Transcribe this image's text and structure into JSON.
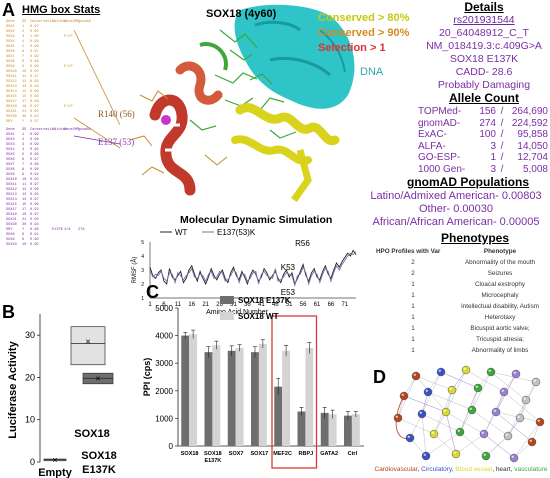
{
  "panel_a": {
    "letter": "A",
    "hmg_title": "HMG box Stats",
    "table_top_header": [
      "Gene",
      "SS",
      "Conservation",
      "ClinVar",
      "Gene2MP",
      "gnomAD"
    ],
    "table_top_rows": [
      [
        "SOX1",
        "1",
        "0.97",
        "",
        "",
        ""
      ],
      [
        "SOX2",
        "2",
        "0.95",
        "",
        "",
        ""
      ],
      [
        "SOX3",
        "3",
        "1.00",
        "",
        "P/LP",
        ""
      ],
      [
        "SOX4",
        "4",
        "0.98",
        "",
        "",
        ""
      ],
      [
        "SOX5",
        "5",
        "0.96",
        "",
        "",
        ""
      ],
      [
        "SOX6",
        "6",
        "0.97",
        "",
        "",
        ""
      ],
      [
        "SOX7",
        "7",
        "0.99",
        "",
        "",
        ""
      ],
      [
        "SOX8",
        "8",
        "0.96",
        "",
        "",
        ""
      ],
      [
        "SOX9",
        "9",
        "0.98",
        "",
        "P/LP",
        ""
      ],
      [
        "SOX10",
        "10",
        "0.95",
        "",
        "",
        ""
      ],
      [
        "SOX11",
        "11",
        "0.97",
        "",
        "",
        ""
      ],
      [
        "SOX12",
        "12",
        "0.96",
        "",
        "",
        ""
      ],
      [
        "SOX13",
        "13",
        "0.94",
        "",
        "",
        ""
      ],
      [
        "SOX14",
        "14",
        "0.99",
        "",
        "",
        ""
      ],
      [
        "SOX15",
        "15",
        "0.96",
        "",
        "",
        ""
      ],
      [
        "SOX17",
        "17",
        "0.98",
        "",
        "",
        ""
      ],
      [
        "SOX18",
        "18",
        "0.97",
        "",
        "P/LP",
        ""
      ],
      [
        "SOX21",
        "21",
        "0.95",
        "",
        "",
        ""
      ],
      [
        "SOX30",
        "30",
        "0.93",
        "",
        "",
        ""
      ],
      [
        "SRY",
        "Y",
        "0.97",
        "",
        "",
        ""
      ]
    ],
    "table_bottom_header": [
      "Gene",
      "SS",
      "Conservation",
      "ClinVar",
      "Gene2MP",
      "gnomAD"
    ],
    "table_bottom_rows": [
      [
        "SOX1",
        "1",
        "0.99",
        "",
        "",
        ""
      ],
      [
        "SOX2",
        "2",
        "0.98",
        "",
        "",
        ""
      ],
      [
        "SOX3",
        "3",
        "0.99",
        "",
        "",
        ""
      ],
      [
        "SOX4",
        "4",
        "0.95",
        "",
        "",
        ""
      ],
      [
        "SOX5",
        "5",
        "0.98",
        "",
        "",
        ""
      ],
      [
        "SOX6",
        "6",
        "0.97",
        "",
        "",
        ""
      ],
      [
        "SOX7",
        "7",
        "0.98",
        "",
        "",
        ""
      ],
      [
        "SOX8",
        "8",
        "0.96",
        "",
        "",
        ""
      ],
      [
        "SOX9",
        "9",
        "0.94",
        "",
        "",
        ""
      ],
      [
        "SOX10",
        "10",
        "0.95",
        "",
        "",
        ""
      ],
      [
        "SOX11",
        "11",
        "0.97",
        "",
        "",
        ""
      ],
      [
        "SOX12",
        "12",
        "0.96",
        "",
        "",
        ""
      ],
      [
        "SOX13",
        "13",
        "0.95",
        "",
        "",
        ""
      ],
      [
        "SOX14",
        "14",
        "0.97",
        "",
        "",
        ""
      ],
      [
        "SOX15",
        "15",
        "0.96",
        "",
        "",
        ""
      ],
      [
        "SOX17",
        "17",
        "0.93",
        "",
        "",
        ""
      ],
      [
        "SOX18",
        "18",
        "0.97",
        "",
        "",
        ""
      ],
      [
        "SOX21",
        "21",
        "0.95",
        "",
        "",
        ""
      ],
      [
        "SOX30",
        "30",
        "0.94",
        "",
        "",
        ""
      ],
      [
        "SRY",
        "Y",
        "0.98",
        "E137K",
        "1/6",
        "278"
      ],
      [
        "SOX8",
        "8",
        "0.91",
        "",
        "",
        ""
      ],
      [
        "SOX9",
        "9",
        "0.90",
        "",
        "",
        ""
      ],
      [
        "SOX10",
        "10",
        "0.95",
        "",
        "",
        ""
      ]
    ],
    "label_r140": "R140 (56)",
    "label_e137": "E137 (53)",
    "structure_title": "SOX18 (4y60)",
    "dna_label": "DNA",
    "legend": {
      "conserved80": "Conserved > 80%",
      "conserved90": "Conserved > 90%",
      "selection": "Selection > 1"
    },
    "colors": {
      "conserved80": "#c8c810",
      "conserved90": "#d48a1c",
      "selection": "#e03030",
      "dna": "#2ec4c8",
      "purple": "#7b2ea6"
    },
    "details": {
      "title": "Details",
      "rsid": "rs201931544",
      "hgvs_g": "20_64048912_C_T",
      "hgvs_c": "NM_018419.3:c.409G>A",
      "protein": "SOX18 E137K",
      "cadd": "CADD- 28.6",
      "prediction": "Probably Damaging"
    },
    "allele_count": {
      "title": "Allele Count",
      "rows": [
        {
          "source": "TOPMed-",
          "count": "156",
          "total": "264,690"
        },
        {
          "source": "gnomAD-",
          "count": "274",
          "total": "224,592"
        },
        {
          "source": "ExAC-",
          "count": "100",
          "total": "95,858"
        },
        {
          "source": "ALFA-",
          "count": "3",
          "total": "14,050"
        },
        {
          "source": "GO-ESP-",
          "count": "1",
          "total": "12,704"
        },
        {
          "source": "1000 Gen-",
          "count": "3",
          "total": "5,008"
        }
      ]
    },
    "gnomad_populations": {
      "title": "gnomAD Populations",
      "rows": [
        "Latino/Admixed American- 0.00803",
        "Other- 0.00030",
        "African/African American- 0.00005"
      ]
    },
    "phenotypes": {
      "title": "Phenotypes",
      "header_left": "HPO Profiles with Var",
      "header_right": "Phenotype",
      "rows": [
        {
          "n": "2",
          "name": "Abnormality of the mouth"
        },
        {
          "n": "2",
          "name": "Seizures"
        },
        {
          "n": "1",
          "name": "Cloacal exstrophy"
        },
        {
          "n": "1",
          "name": "Microcephaly"
        },
        {
          "n": "1",
          "name": "Intellectual disability, Autism"
        },
        {
          "n": "1",
          "name": "Heterotaxy"
        },
        {
          "n": "1",
          "name": "Bicuspid aortic valve;"
        },
        {
          "n": "1",
          "name": "Tricuspid atresia;"
        },
        {
          "n": "1",
          "name": "Abnormality of limbs"
        }
      ]
    },
    "md": {
      "title": "Molecular Dynamic Simulation",
      "legend_wt": "WT",
      "legend_mut": "E137(53)K",
      "ylabel": "RMSF (Å)",
      "xlabel": "Amino Acid Number",
      "yticks": [
        "5",
        "4",
        "3",
        "2",
        "1"
      ],
      "xticks": [
        "1",
        "6",
        "11",
        "16",
        "21",
        "26",
        "31",
        "36",
        "41",
        "46",
        "51",
        "56",
        "61",
        "66",
        "71"
      ],
      "labels": [
        "R56",
        "K53",
        "E53"
      ]
    }
  },
  "panel_b": {
    "letter": "B",
    "ylabel": "Luciferase Activity",
    "yticks": [
      "30",
      "20",
      "10",
      "0"
    ],
    "labels": [
      "SOX18",
      "SOX18 E137K",
      "Empty"
    ]
  },
  "panel_c": {
    "letter": "C",
    "ylabel": "PPI (cps)",
    "legend_mut": "SOX18 E137K",
    "legend_wt": "SOX18 WT",
    "yticks": [
      "5000",
      "4000",
      "3000",
      "2000",
      "1000",
      "0"
    ],
    "colors": {
      "mut": "#6e6e6e",
      "wt": "#d4d4d4",
      "highlight": "#d23b3b"
    }
  },
  "panel_d": {
    "letter": "D",
    "legend_parts": [
      {
        "text": "Cardiovascular",
        "color": "#b5451b"
      },
      {
        "text": ", ",
        "color": "#333333"
      },
      {
        "text": "Circulatory",
        "color": "#3a52c4"
      },
      {
        "text": ", ",
        "color": "#333333"
      },
      {
        "text": "Blood vessel",
        "color": "#d8d830"
      },
      {
        "text": ", heart, ",
        "color": "#333333"
      },
      {
        "text": "vasculature",
        "color": "#3aa83a"
      }
    ]
  },
  "chart_data": [
    {
      "type": "line",
      "title": "Molecular Dynamic Simulation",
      "xlabel": "Amino Acid Number",
      "ylabel": "RMSF (Å)",
      "ylim": [
        1,
        5
      ],
      "xlim": [
        1,
        75
      ],
      "series": [
        {
          "name": "WT",
          "values": [
            3.2,
            2.6,
            2.4,
            2.8,
            3.0,
            2.2,
            2.0,
            3.1,
            2.5,
            2.3,
            2.6,
            2.9,
            2.1,
            2.4,
            3.0,
            3.3,
            2.7,
            2.2,
            2.9,
            2.4,
            2.0,
            2.5,
            3.1,
            2.6,
            2.3,
            2.7,
            3.0,
            2.4,
            2.1,
            2.8,
            3.2,
            2.6,
            2.3,
            2.9,
            2.5,
            2.0,
            2.6,
            3.0,
            2.7,
            2.2,
            2.5,
            3.1,
            2.8,
            2.3,
            2.6,
            2.9,
            2.4,
            2.1,
            2.7,
            3.0,
            2.5,
            2.8,
            2.0,
            2.4,
            2.9,
            3.4,
            2.6,
            2.2,
            2.8,
            3.1,
            2.5,
            2.3,
            2.9,
            3.3,
            2.7,
            2.4,
            3.0,
            3.5,
            3.2,
            3.6,
            3.9,
            4.2,
            4.0,
            4.4,
            4.1
          ]
        },
        {
          "name": "E137(53)K",
          "values": [
            3.0,
            2.5,
            2.7,
            2.6,
            2.9,
            2.4,
            2.2,
            2.8,
            2.7,
            2.1,
            2.8,
            2.6,
            2.3,
            2.6,
            2.8,
            3.1,
            2.5,
            2.4,
            2.7,
            2.6,
            2.2,
            2.7,
            2.9,
            2.4,
            2.5,
            2.9,
            2.8,
            2.2,
            2.3,
            2.6,
            3.0,
            2.8,
            2.1,
            2.7,
            2.7,
            2.2,
            2.4,
            2.8,
            2.9,
            2.0,
            2.7,
            2.9,
            2.6,
            2.5,
            2.4,
            3.1,
            2.2,
            2.3,
            2.5,
            2.8,
            2.7,
            2.6,
            1.9,
            2.6,
            2.7,
            3.2,
            2.8,
            2.0,
            2.6,
            2.9,
            2.7,
            2.1,
            2.7,
            3.1,
            2.9,
            2.2,
            2.8,
            3.3,
            3.0,
            3.4,
            3.7,
            4.0,
            4.2,
            4.1,
            4.3
          ]
        }
      ]
    },
    {
      "type": "box",
      "ylabel": "Luciferase Activity",
      "ylim": [
        0,
        35
      ],
      "categories": [
        "SOX18",
        "SOX18 E137K",
        "Empty"
      ],
      "boxes": [
        {
          "name": "SOX18",
          "q1": 23.0,
          "q3": 32.0,
          "median": 28.0,
          "mean": 28.5
        },
        {
          "name": "SOX18 E137K",
          "q1": 18.5,
          "q3": 21.0,
          "median": 19.8,
          "mean": 19.8
        },
        {
          "name": "Empty",
          "q1": 0.3,
          "q3": 0.7,
          "median": 0.5,
          "mean": 0.5
        }
      ]
    },
    {
      "type": "bar",
      "ylabel": "PPI (cps)",
      "ylim": [
        0,
        5000
      ],
      "categories": [
        "SOX18",
        "SOX18 E137K",
        "SOX7",
        "SOX17",
        "MEF2C",
        "RBPJ",
        "GATA2",
        "Ctrl"
      ],
      "series": [
        {
          "name": "SOX18 E137K",
          "values": [
            4000,
            3400,
            3450,
            3400,
            2150,
            1250,
            1200,
            1100
          ],
          "errors": [
            120,
            200,
            180,
            200,
            300,
            150,
            200,
            150
          ]
        },
        {
          "name": "SOX18 WT",
          "values": [
            4050,
            3650,
            3550,
            3700,
            3450,
            3550,
            1150,
            1150
          ],
          "errors": [
            150,
            150,
            120,
            150,
            200,
            200,
            150,
            100
          ]
        }
      ]
    }
  ]
}
